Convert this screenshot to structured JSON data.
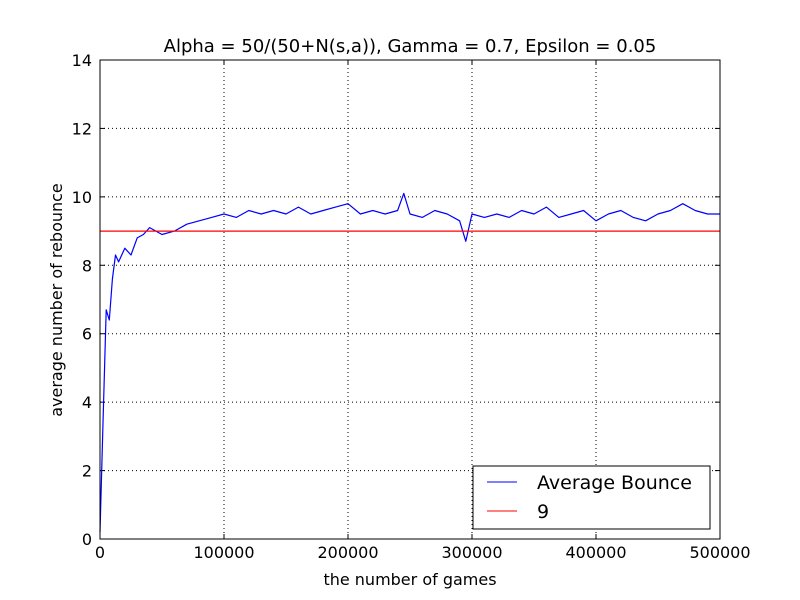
{
  "chart_data": {
    "type": "line",
    "title": "Alpha = 50/(50+N(s,a)), Gamma = 0.7, Epsilon = 0.05",
    "xlabel": "the number of games",
    "ylabel": "average number of rebounce",
    "xlim": [
      0,
      500000
    ],
    "ylim": [
      0,
      14
    ],
    "xticks": [
      0,
      100000,
      200000,
      300000,
      400000,
      500000
    ],
    "xtick_labels": [
      "0",
      "100000",
      "200000",
      "300000",
      "400000",
      "500000"
    ],
    "yticks": [
      0,
      2,
      4,
      6,
      8,
      10,
      12,
      14
    ],
    "ytick_labels": [
      "0",
      "2",
      "4",
      "6",
      "8",
      "10",
      "12",
      "14"
    ],
    "grid": true,
    "legend_position": "lower-right",
    "series": [
      {
        "name": "Average Bounce",
        "color": "#0000ff",
        "x": [
          0,
          2500,
          5000,
          7500,
          10000,
          12500,
          15000,
          20000,
          25000,
          30000,
          35000,
          40000,
          50000,
          60000,
          70000,
          80000,
          90000,
          100000,
          110000,
          120000,
          130000,
          140000,
          150000,
          160000,
          170000,
          180000,
          190000,
          200000,
          210000,
          220000,
          230000,
          240000,
          245000,
          250000,
          260000,
          270000,
          280000,
          290000,
          295000,
          300000,
          310000,
          320000,
          330000,
          340000,
          350000,
          360000,
          370000,
          380000,
          390000,
          400000,
          410000,
          420000,
          430000,
          440000,
          450000,
          460000,
          470000,
          480000,
          490000,
          500000
        ],
        "y": [
          0.2,
          3.5,
          6.7,
          6.4,
          7.6,
          8.3,
          8.1,
          8.5,
          8.3,
          8.8,
          8.9,
          9.1,
          8.9,
          9.0,
          9.2,
          9.3,
          9.4,
          9.5,
          9.4,
          9.6,
          9.5,
          9.6,
          9.5,
          9.7,
          9.5,
          9.6,
          9.7,
          9.8,
          9.5,
          9.6,
          9.5,
          9.6,
          10.1,
          9.5,
          9.4,
          9.6,
          9.5,
          9.3,
          8.7,
          9.5,
          9.4,
          9.5,
          9.4,
          9.6,
          9.5,
          9.7,
          9.4,
          9.5,
          9.6,
          9.3,
          9.5,
          9.6,
          9.4,
          9.3,
          9.5,
          9.6,
          9.8,
          9.6,
          9.5,
          9.5
        ]
      },
      {
        "name": "9",
        "color": "#ff0000",
        "x": [
          0,
          500000
        ],
        "y": [
          9,
          9
        ]
      }
    ]
  }
}
